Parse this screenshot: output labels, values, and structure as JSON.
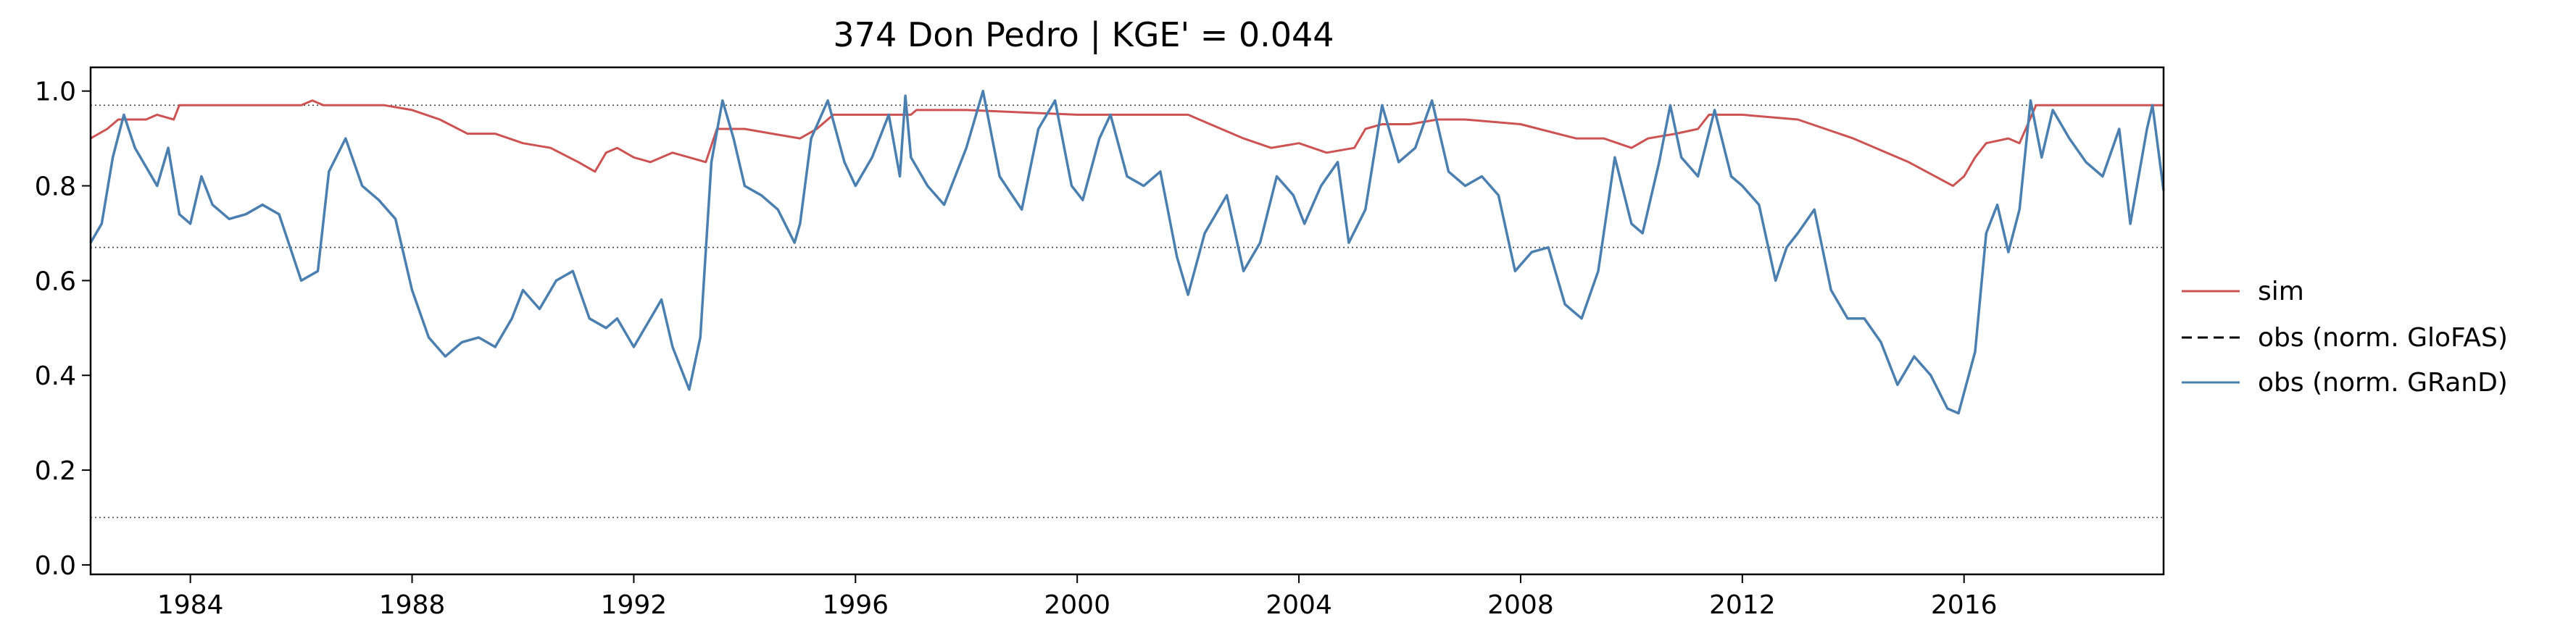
{
  "chart_data": {
    "type": "line",
    "title": "374  Don Pedro | KGE' = 0.044",
    "xlabel": "",
    "ylabel": "",
    "xlim": [
      1982.2,
      2019.6
    ],
    "ylim": [
      -0.02,
      1.05
    ],
    "x_ticks": [
      1984,
      1988,
      1992,
      1996,
      2000,
      2004,
      2008,
      2012,
      2016
    ],
    "y_ticks": [
      0.0,
      0.2,
      0.4,
      0.6,
      0.8,
      1.0
    ],
    "y_tick_labels": [
      "0.0",
      "0.2",
      "0.4",
      "0.6",
      "0.8",
      "1.0"
    ],
    "grid": false,
    "legend_position": "right",
    "reference_lines": [
      0.97,
      0.67,
      0.1
    ],
    "series": [
      {
        "name": "sim",
        "color": "#cd5353",
        "style": "solid",
        "points": [
          [
            1982.2,
            0.9
          ],
          [
            1982.5,
            0.92
          ],
          [
            1982.7,
            0.94
          ],
          [
            1983.2,
            0.94
          ],
          [
            1983.4,
            0.95
          ],
          [
            1983.7,
            0.94
          ],
          [
            1983.8,
            0.97
          ],
          [
            1984.5,
            0.97
          ],
          [
            1986.0,
            0.97
          ],
          [
            1986.2,
            0.98
          ],
          [
            1986.4,
            0.97
          ],
          [
            1987.5,
            0.97
          ],
          [
            1988.0,
            0.96
          ],
          [
            1988.5,
            0.94
          ],
          [
            1989.0,
            0.91
          ],
          [
            1989.5,
            0.91
          ],
          [
            1990.0,
            0.89
          ],
          [
            1990.5,
            0.88
          ],
          [
            1991.0,
            0.85
          ],
          [
            1991.3,
            0.83
          ],
          [
            1991.5,
            0.87
          ],
          [
            1991.7,
            0.88
          ],
          [
            1992.0,
            0.86
          ],
          [
            1992.3,
            0.85
          ],
          [
            1992.7,
            0.87
          ],
          [
            1993.0,
            0.86
          ],
          [
            1993.3,
            0.85
          ],
          [
            1993.5,
            0.92
          ],
          [
            1994.0,
            0.92
          ],
          [
            1994.5,
            0.91
          ],
          [
            1995.0,
            0.9
          ],
          [
            1995.3,
            0.92
          ],
          [
            1995.6,
            0.95
          ],
          [
            1997.0,
            0.95
          ],
          [
            1997.1,
            0.96
          ],
          [
            1998.0,
            0.96
          ],
          [
            2000.0,
            0.95
          ],
          [
            2002.0,
            0.95
          ],
          [
            2003.0,
            0.9
          ],
          [
            2003.5,
            0.88
          ],
          [
            2004.0,
            0.89
          ],
          [
            2004.5,
            0.87
          ],
          [
            2005.0,
            0.88
          ],
          [
            2005.2,
            0.92
          ],
          [
            2005.5,
            0.93
          ],
          [
            2006.0,
            0.93
          ],
          [
            2006.5,
            0.94
          ],
          [
            2007.0,
            0.94
          ],
          [
            2008.0,
            0.93
          ],
          [
            2009.0,
            0.9
          ],
          [
            2009.5,
            0.9
          ],
          [
            2010.0,
            0.88
          ],
          [
            2010.3,
            0.9
          ],
          [
            2010.8,
            0.91
          ],
          [
            2011.2,
            0.92
          ],
          [
            2011.4,
            0.95
          ],
          [
            2012.0,
            0.95
          ],
          [
            2013.0,
            0.94
          ],
          [
            2014.0,
            0.9
          ],
          [
            2015.0,
            0.85
          ],
          [
            2015.8,
            0.8
          ],
          [
            2016.0,
            0.82
          ],
          [
            2016.2,
            0.86
          ],
          [
            2016.4,
            0.89
          ],
          [
            2016.8,
            0.9
          ],
          [
            2017.0,
            0.89
          ],
          [
            2017.3,
            0.97
          ],
          [
            2018.0,
            0.97
          ],
          [
            2019.6,
            0.97
          ]
        ]
      },
      {
        "name": "obs (norm. GloFAS)",
        "color": "#000000",
        "style": "dashed",
        "points": []
      },
      {
        "name": "obs (norm. GRanD)",
        "color": "#4a7fb0",
        "style": "solid",
        "points": [
          [
            1982.2,
            0.68
          ],
          [
            1982.4,
            0.72
          ],
          [
            1982.6,
            0.86
          ],
          [
            1982.8,
            0.95
          ],
          [
            1983.0,
            0.88
          ],
          [
            1983.2,
            0.84
          ],
          [
            1983.4,
            0.8
          ],
          [
            1983.6,
            0.88
          ],
          [
            1983.8,
            0.74
          ],
          [
            1984.0,
            0.72
          ],
          [
            1984.2,
            0.82
          ],
          [
            1984.4,
            0.76
          ],
          [
            1984.7,
            0.73
          ],
          [
            1985.0,
            0.74
          ],
          [
            1985.3,
            0.76
          ],
          [
            1985.6,
            0.74
          ],
          [
            1986.0,
            0.6
          ],
          [
            1986.3,
            0.62
          ],
          [
            1986.5,
            0.83
          ],
          [
            1986.8,
            0.9
          ],
          [
            1987.1,
            0.8
          ],
          [
            1987.4,
            0.77
          ],
          [
            1987.7,
            0.73
          ],
          [
            1988.0,
            0.58
          ],
          [
            1988.3,
            0.48
          ],
          [
            1988.6,
            0.44
          ],
          [
            1988.9,
            0.47
          ],
          [
            1989.2,
            0.48
          ],
          [
            1989.5,
            0.46
          ],
          [
            1989.8,
            0.52
          ],
          [
            1990.0,
            0.58
          ],
          [
            1990.3,
            0.54
          ],
          [
            1990.6,
            0.6
          ],
          [
            1990.9,
            0.62
          ],
          [
            1991.2,
            0.52
          ],
          [
            1991.5,
            0.5
          ],
          [
            1991.7,
            0.52
          ],
          [
            1992.0,
            0.46
          ],
          [
            1992.3,
            0.52
          ],
          [
            1992.5,
            0.56
          ],
          [
            1992.7,
            0.46
          ],
          [
            1993.0,
            0.37
          ],
          [
            1993.2,
            0.48
          ],
          [
            1993.4,
            0.85
          ],
          [
            1993.6,
            0.98
          ],
          [
            1993.8,
            0.9
          ],
          [
            1994.0,
            0.8
          ],
          [
            1994.3,
            0.78
          ],
          [
            1994.6,
            0.75
          ],
          [
            1994.9,
            0.68
          ],
          [
            1995.0,
            0.72
          ],
          [
            1995.2,
            0.9
          ],
          [
            1995.5,
            0.98
          ],
          [
            1995.8,
            0.85
          ],
          [
            1996.0,
            0.8
          ],
          [
            1996.3,
            0.86
          ],
          [
            1996.6,
            0.95
          ],
          [
            1996.8,
            0.82
          ],
          [
            1996.9,
            0.99
          ],
          [
            1997.0,
            0.86
          ],
          [
            1997.3,
            0.8
          ],
          [
            1997.6,
            0.76
          ],
          [
            1998.0,
            0.88
          ],
          [
            1998.3,
            1.0
          ],
          [
            1998.6,
            0.82
          ],
          [
            1999.0,
            0.75
          ],
          [
            1999.3,
            0.92
          ],
          [
            1999.6,
            0.98
          ],
          [
            1999.9,
            0.8
          ],
          [
            2000.1,
            0.77
          ],
          [
            2000.4,
            0.9
          ],
          [
            2000.6,
            0.95
          ],
          [
            2000.9,
            0.82
          ],
          [
            2001.2,
            0.8
          ],
          [
            2001.5,
            0.83
          ],
          [
            2001.8,
            0.65
          ],
          [
            2002.0,
            0.57
          ],
          [
            2002.3,
            0.7
          ],
          [
            2002.7,
            0.78
          ],
          [
            2003.0,
            0.62
          ],
          [
            2003.3,
            0.68
          ],
          [
            2003.6,
            0.82
          ],
          [
            2003.9,
            0.78
          ],
          [
            2004.1,
            0.72
          ],
          [
            2004.4,
            0.8
          ],
          [
            2004.7,
            0.85
          ],
          [
            2004.9,
            0.68
          ],
          [
            2005.2,
            0.75
          ],
          [
            2005.5,
            0.97
          ],
          [
            2005.8,
            0.85
          ],
          [
            2006.1,
            0.88
          ],
          [
            2006.4,
            0.98
          ],
          [
            2006.7,
            0.83
          ],
          [
            2007.0,
            0.8
          ],
          [
            2007.3,
            0.82
          ],
          [
            2007.6,
            0.78
          ],
          [
            2007.9,
            0.62
          ],
          [
            2008.2,
            0.66
          ],
          [
            2008.5,
            0.67
          ],
          [
            2008.8,
            0.55
          ],
          [
            2009.1,
            0.52
          ],
          [
            2009.4,
            0.62
          ],
          [
            2009.7,
            0.86
          ],
          [
            2010.0,
            0.72
          ],
          [
            2010.2,
            0.7
          ],
          [
            2010.5,
            0.85
          ],
          [
            2010.7,
            0.97
          ],
          [
            2010.9,
            0.86
          ],
          [
            2011.2,
            0.82
          ],
          [
            2011.5,
            0.96
          ],
          [
            2011.8,
            0.82
          ],
          [
            2012.0,
            0.8
          ],
          [
            2012.3,
            0.76
          ],
          [
            2012.6,
            0.6
          ],
          [
            2012.8,
            0.67
          ],
          [
            2013.0,
            0.7
          ],
          [
            2013.3,
            0.75
          ],
          [
            2013.6,
            0.58
          ],
          [
            2013.9,
            0.52
          ],
          [
            2014.2,
            0.52
          ],
          [
            2014.5,
            0.47
          ],
          [
            2014.8,
            0.38
          ],
          [
            2015.1,
            0.44
          ],
          [
            2015.4,
            0.4
          ],
          [
            2015.7,
            0.33
          ],
          [
            2015.9,
            0.32
          ],
          [
            2016.2,
            0.45
          ],
          [
            2016.4,
            0.7
          ],
          [
            2016.6,
            0.76
          ],
          [
            2016.8,
            0.66
          ],
          [
            2017.0,
            0.75
          ],
          [
            2017.2,
            0.98
          ],
          [
            2017.4,
            0.86
          ],
          [
            2017.6,
            0.96
          ],
          [
            2017.9,
            0.9
          ],
          [
            2018.2,
            0.85
          ],
          [
            2018.5,
            0.82
          ],
          [
            2018.8,
            0.92
          ],
          [
            2019.0,
            0.72
          ],
          [
            2019.3,
            0.92
          ],
          [
            2019.4,
            0.97
          ],
          [
            2019.6,
            0.79
          ]
        ]
      }
    ]
  }
}
